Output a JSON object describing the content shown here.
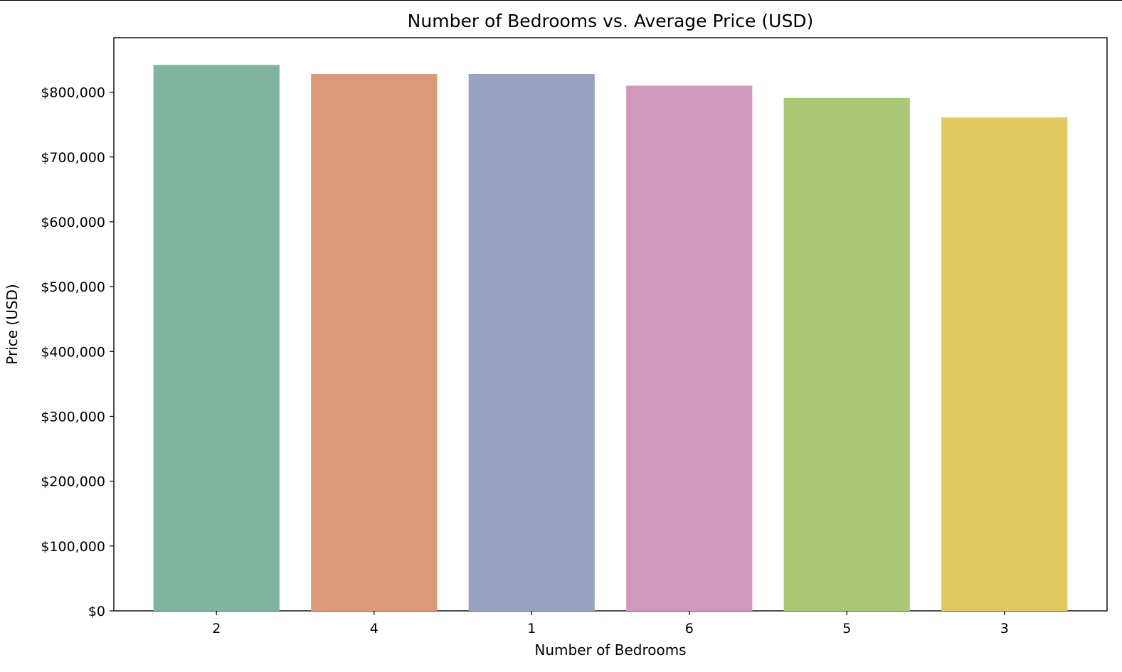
{
  "chart_data": {
    "type": "bar",
    "title": "Number of Bedrooms vs. Average Price (USD)",
    "xlabel": "Number of Bedrooms",
    "ylabel": "Price (USD)",
    "categories": [
      "2",
      "4",
      "1",
      "6",
      "5",
      "3"
    ],
    "values": [
      842000,
      828000,
      828000,
      810000,
      791000,
      761000
    ],
    "ylim": [
      0,
      884000
    ],
    "yticks": [
      0,
      100000,
      200000,
      300000,
      400000,
      500000,
      600000,
      700000,
      800000
    ],
    "ytick_labels": [
      "$0",
      "$100,000",
      "$200,000",
      "$300,000",
      "$400,000",
      "$500,000",
      "$600,000",
      "$700,000",
      "$800,000"
    ],
    "colors": [
      "#80b3a0",
      "#dd9a7a",
      "#98a2c1",
      "#d198be",
      "#a9c775",
      "#e0c95f"
    ],
    "grid": false,
    "legend": "none"
  }
}
